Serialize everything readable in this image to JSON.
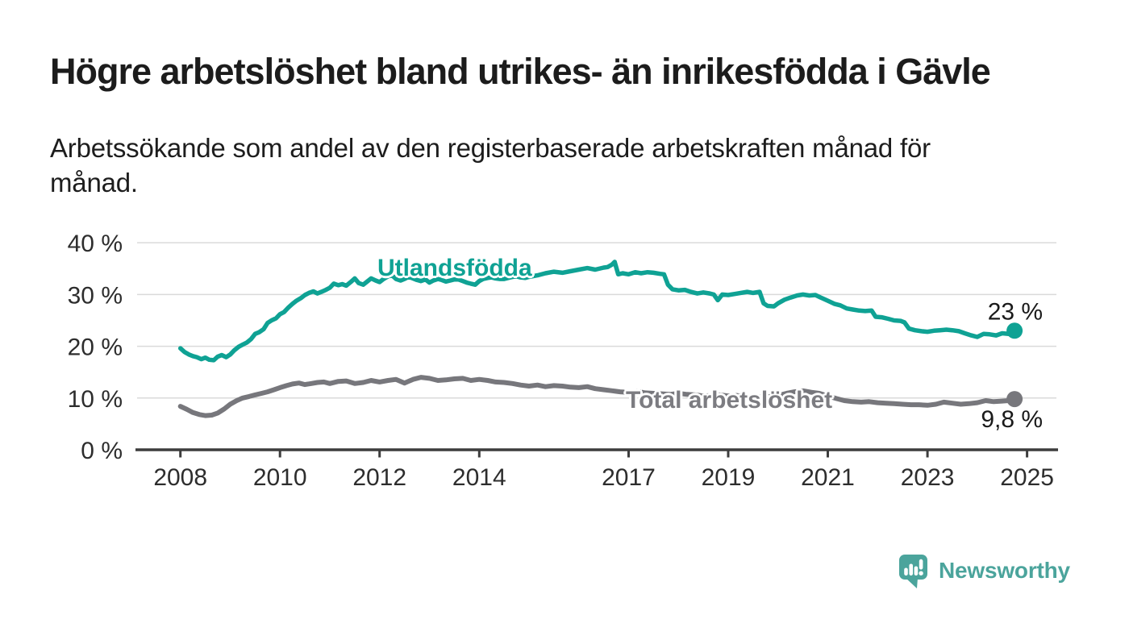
{
  "chart_data": {
    "type": "line",
    "title": "Högre arbetslöshet bland utrikes- än inrikesfödda i Gävle",
    "subtitle_lines": [
      "Arbetssökande som andel av den registerbaserade arbetskraften månad för",
      "månad."
    ],
    "y_unit": "%",
    "x_domain": [
      2007.13,
      2025.59
    ],
    "y_domain": [
      0,
      40.8
    ],
    "grid": true,
    "legend_position": "inline-labels",
    "y_ticks": [
      {
        "value": 0,
        "label": "0 %"
      },
      {
        "value": 10,
        "label": "10 %"
      },
      {
        "value": 20,
        "label": "20 %"
      },
      {
        "value": 30,
        "label": "30 %"
      },
      {
        "value": 40,
        "label": "40 %"
      }
    ],
    "x_ticks": [
      {
        "value": 2008,
        "label": "2008"
      },
      {
        "value": 2010,
        "label": "2010"
      },
      {
        "value": 2012,
        "label": "2012"
      },
      {
        "value": 2014,
        "label": "2014"
      },
      {
        "value": 2017,
        "label": "2017"
      },
      {
        "value": 2019,
        "label": "2019"
      },
      {
        "value": 2021,
        "label": "2021"
      },
      {
        "value": 2023,
        "label": "2023"
      },
      {
        "value": 2025,
        "label": "2025"
      }
    ],
    "series": [
      {
        "name": "Utlandsfödda",
        "color": "#0fa294",
        "end_label": "23 %",
        "last_value_pct": 23,
        "points": [
          [
            2008.0,
            19.6
          ],
          [
            2008.08,
            18.9
          ],
          [
            2008.17,
            18.4
          ],
          [
            2008.25,
            18.1
          ],
          [
            2008.33,
            17.9
          ],
          [
            2008.42,
            17.5
          ],
          [
            2008.5,
            17.8
          ],
          [
            2008.58,
            17.4
          ],
          [
            2008.67,
            17.3
          ],
          [
            2008.75,
            18.0
          ],
          [
            2008.83,
            18.3
          ],
          [
            2008.92,
            17.9
          ],
          [
            2009.0,
            18.4
          ],
          [
            2009.08,
            19.2
          ],
          [
            2009.17,
            19.9
          ],
          [
            2009.25,
            20.3
          ],
          [
            2009.33,
            20.7
          ],
          [
            2009.42,
            21.4
          ],
          [
            2009.5,
            22.4
          ],
          [
            2009.58,
            22.7
          ],
          [
            2009.67,
            23.3
          ],
          [
            2009.75,
            24.5
          ],
          [
            2009.83,
            25.0
          ],
          [
            2009.92,
            25.4
          ],
          [
            2010.0,
            26.2
          ],
          [
            2010.08,
            26.6
          ],
          [
            2010.17,
            27.5
          ],
          [
            2010.25,
            28.2
          ],
          [
            2010.33,
            28.8
          ],
          [
            2010.42,
            29.3
          ],
          [
            2010.5,
            29.9
          ],
          [
            2010.58,
            30.3
          ],
          [
            2010.67,
            30.6
          ],
          [
            2010.75,
            30.2
          ],
          [
            2010.83,
            30.5
          ],
          [
            2010.92,
            30.9
          ],
          [
            2011.0,
            31.3
          ],
          [
            2011.08,
            32.1
          ],
          [
            2011.17,
            31.8
          ],
          [
            2011.25,
            32.0
          ],
          [
            2011.33,
            31.7
          ],
          [
            2011.42,
            32.4
          ],
          [
            2011.5,
            33.1
          ],
          [
            2011.58,
            32.2
          ],
          [
            2011.67,
            31.9
          ],
          [
            2011.75,
            32.5
          ],
          [
            2011.83,
            33.1
          ],
          [
            2011.92,
            32.7
          ],
          [
            2012.0,
            32.4
          ],
          [
            2012.08,
            33.0
          ],
          [
            2012.17,
            33.5
          ],
          [
            2012.25,
            33.7
          ],
          [
            2012.33,
            33.0
          ],
          [
            2012.42,
            32.7
          ],
          [
            2012.5,
            33.0
          ],
          [
            2012.58,
            33.4
          ],
          [
            2012.67,
            33.1
          ],
          [
            2012.75,
            32.8
          ],
          [
            2012.83,
            32.6
          ],
          [
            2012.92,
            32.9
          ],
          [
            2013.0,
            32.3
          ],
          [
            2013.08,
            32.7
          ],
          [
            2013.17,
            33.0
          ],
          [
            2013.25,
            32.8
          ],
          [
            2013.33,
            32.5
          ],
          [
            2013.42,
            32.7
          ],
          [
            2013.5,
            32.9
          ],
          [
            2013.58,
            32.9
          ],
          [
            2013.67,
            32.6
          ],
          [
            2013.75,
            32.3
          ],
          [
            2013.83,
            32.1
          ],
          [
            2013.92,
            31.9
          ],
          [
            2014.0,
            32.6
          ],
          [
            2014.08,
            33.0
          ],
          [
            2014.17,
            33.2
          ],
          [
            2014.25,
            33.3
          ],
          [
            2014.33,
            33.1
          ],
          [
            2014.42,
            33.0
          ],
          [
            2014.5,
            33.0
          ],
          [
            2014.58,
            33.2
          ],
          [
            2014.67,
            33.4
          ],
          [
            2014.75,
            33.5
          ],
          [
            2014.83,
            33.3
          ],
          [
            2014.92,
            33.2
          ],
          [
            2015.0,
            33.4
          ],
          [
            2015.17,
            33.7
          ],
          [
            2015.33,
            34.1
          ],
          [
            2015.5,
            34.4
          ],
          [
            2015.67,
            34.2
          ],
          [
            2015.83,
            34.5
          ],
          [
            2016.0,
            34.8
          ],
          [
            2016.17,
            35.1
          ],
          [
            2016.33,
            34.8
          ],
          [
            2016.5,
            35.2
          ],
          [
            2016.58,
            35.3
          ],
          [
            2016.67,
            35.8
          ],
          [
            2016.72,
            36.3
          ],
          [
            2016.79,
            33.9
          ],
          [
            2016.88,
            34.1
          ],
          [
            2017.0,
            33.9
          ],
          [
            2017.13,
            34.3
          ],
          [
            2017.25,
            34.1
          ],
          [
            2017.38,
            34.3
          ],
          [
            2017.5,
            34.2
          ],
          [
            2017.63,
            34.0
          ],
          [
            2017.71,
            33.9
          ],
          [
            2017.79,
            31.9
          ],
          [
            2017.88,
            31.0
          ],
          [
            2018.0,
            30.8
          ],
          [
            2018.13,
            30.9
          ],
          [
            2018.25,
            30.5
          ],
          [
            2018.38,
            30.2
          ],
          [
            2018.5,
            30.4
          ],
          [
            2018.63,
            30.2
          ],
          [
            2018.71,
            30.0
          ],
          [
            2018.79,
            28.9
          ],
          [
            2018.88,
            30.0
          ],
          [
            2019.0,
            29.9
          ],
          [
            2019.13,
            30.1
          ],
          [
            2019.25,
            30.3
          ],
          [
            2019.38,
            30.5
          ],
          [
            2019.5,
            30.3
          ],
          [
            2019.63,
            30.5
          ],
          [
            2019.71,
            28.3
          ],
          [
            2019.79,
            27.8
          ],
          [
            2019.92,
            27.7
          ],
          [
            2020.0,
            28.3
          ],
          [
            2020.13,
            29.0
          ],
          [
            2020.25,
            29.4
          ],
          [
            2020.38,
            29.8
          ],
          [
            2020.5,
            30.0
          ],
          [
            2020.63,
            29.8
          ],
          [
            2020.75,
            29.9
          ],
          [
            2020.88,
            29.3
          ],
          [
            2021.0,
            28.8
          ],
          [
            2021.13,
            28.2
          ],
          [
            2021.25,
            27.9
          ],
          [
            2021.38,
            27.3
          ],
          [
            2021.5,
            27.1
          ],
          [
            2021.63,
            26.9
          ],
          [
            2021.75,
            26.8
          ],
          [
            2021.88,
            26.9
          ],
          [
            2021.96,
            25.7
          ],
          [
            2022.08,
            25.6
          ],
          [
            2022.21,
            25.3
          ],
          [
            2022.33,
            25.0
          ],
          [
            2022.46,
            24.9
          ],
          [
            2022.54,
            24.6
          ],
          [
            2022.63,
            23.4
          ],
          [
            2022.75,
            23.1
          ],
          [
            2022.88,
            22.9
          ],
          [
            2023.0,
            22.8
          ],
          [
            2023.13,
            23.0
          ],
          [
            2023.25,
            23.1
          ],
          [
            2023.38,
            23.2
          ],
          [
            2023.5,
            23.1
          ],
          [
            2023.63,
            22.9
          ],
          [
            2023.75,
            22.5
          ],
          [
            2023.88,
            22.1
          ],
          [
            2024.0,
            21.8
          ],
          [
            2024.13,
            22.4
          ],
          [
            2024.25,
            22.3
          ],
          [
            2024.38,
            22.1
          ],
          [
            2024.5,
            22.5
          ],
          [
            2024.63,
            22.4
          ],
          [
            2024.75,
            23.0
          ]
        ]
      },
      {
        "name": "Total arbetslöshet",
        "color": "#77777c",
        "end_label": "9,8 %",
        "last_value_pct": 9.8,
        "points": [
          [
            2008.0,
            8.4
          ],
          [
            2008.13,
            7.8
          ],
          [
            2008.25,
            7.2
          ],
          [
            2008.38,
            6.8
          ],
          [
            2008.5,
            6.6
          ],
          [
            2008.63,
            6.7
          ],
          [
            2008.75,
            7.1
          ],
          [
            2008.88,
            7.9
          ],
          [
            2009.0,
            8.8
          ],
          [
            2009.13,
            9.5
          ],
          [
            2009.25,
            10.0
          ],
          [
            2009.38,
            10.3
          ],
          [
            2009.5,
            10.6
          ],
          [
            2009.63,
            10.9
          ],
          [
            2009.75,
            11.2
          ],
          [
            2009.88,
            11.6
          ],
          [
            2010.0,
            12.0
          ],
          [
            2010.13,
            12.4
          ],
          [
            2010.25,
            12.7
          ],
          [
            2010.38,
            12.9
          ],
          [
            2010.5,
            12.6
          ],
          [
            2010.63,
            12.8
          ],
          [
            2010.75,
            13.0
          ],
          [
            2010.88,
            13.1
          ],
          [
            2011.0,
            12.8
          ],
          [
            2011.17,
            13.2
          ],
          [
            2011.33,
            13.3
          ],
          [
            2011.5,
            12.8
          ],
          [
            2011.67,
            13.0
          ],
          [
            2011.83,
            13.4
          ],
          [
            2012.0,
            13.1
          ],
          [
            2012.17,
            13.4
          ],
          [
            2012.33,
            13.6
          ],
          [
            2012.5,
            12.9
          ],
          [
            2012.67,
            13.6
          ],
          [
            2012.83,
            14.0
          ],
          [
            2013.0,
            13.8
          ],
          [
            2013.17,
            13.4
          ],
          [
            2013.33,
            13.5
          ],
          [
            2013.5,
            13.7
          ],
          [
            2013.67,
            13.8
          ],
          [
            2013.83,
            13.4
          ],
          [
            2014.0,
            13.6
          ],
          [
            2014.17,
            13.4
          ],
          [
            2014.33,
            13.1
          ],
          [
            2014.5,
            13.0
          ],
          [
            2014.67,
            12.8
          ],
          [
            2014.83,
            12.5
          ],
          [
            2015.0,
            12.3
          ],
          [
            2015.17,
            12.5
          ],
          [
            2015.33,
            12.2
          ],
          [
            2015.5,
            12.4
          ],
          [
            2015.67,
            12.3
          ],
          [
            2015.83,
            12.1
          ],
          [
            2016.0,
            12.0
          ],
          [
            2016.17,
            12.2
          ],
          [
            2016.33,
            11.8
          ],
          [
            2016.5,
            11.6
          ],
          [
            2016.67,
            11.4
          ],
          [
            2016.83,
            11.2
          ],
          [
            2017.0,
            11.1
          ],
          [
            2017.17,
            11.3
          ],
          [
            2017.33,
            11.0
          ],
          [
            2017.5,
            10.9
          ],
          [
            2017.67,
            10.8
          ],
          [
            2017.83,
            10.7
          ],
          [
            2018.0,
            10.9
          ],
          [
            2018.17,
            10.7
          ],
          [
            2018.33,
            10.6
          ],
          [
            2018.5,
            10.4
          ],
          [
            2018.67,
            10.5
          ],
          [
            2018.83,
            10.6
          ],
          [
            2019.0,
            10.4
          ],
          [
            2019.17,
            10.5
          ],
          [
            2019.33,
            10.3
          ],
          [
            2019.5,
            10.1
          ],
          [
            2019.67,
            10.2
          ],
          [
            2019.83,
            10.3
          ],
          [
            2020.0,
            10.5
          ],
          [
            2020.17,
            10.9
          ],
          [
            2020.33,
            11.2
          ],
          [
            2020.5,
            11.4
          ],
          [
            2020.67,
            11.1
          ],
          [
            2020.83,
            10.9
          ],
          [
            2021.0,
            10.4
          ],
          [
            2021.17,
            9.9
          ],
          [
            2021.33,
            9.5
          ],
          [
            2021.5,
            9.3
          ],
          [
            2021.67,
            9.2
          ],
          [
            2021.83,
            9.3
          ],
          [
            2022.0,
            9.1
          ],
          [
            2022.17,
            9.0
          ],
          [
            2022.33,
            8.9
          ],
          [
            2022.5,
            8.8
          ],
          [
            2022.67,
            8.7
          ],
          [
            2022.83,
            8.7
          ],
          [
            2023.0,
            8.6
          ],
          [
            2023.17,
            8.8
          ],
          [
            2023.33,
            9.2
          ],
          [
            2023.5,
            9.0
          ],
          [
            2023.67,
            8.8
          ],
          [
            2023.83,
            8.9
          ],
          [
            2024.0,
            9.1
          ],
          [
            2024.17,
            9.5
          ],
          [
            2024.33,
            9.3
          ],
          [
            2024.5,
            9.4
          ],
          [
            2024.63,
            9.5
          ],
          [
            2024.75,
            9.8
          ]
        ]
      }
    ]
  },
  "logo": {
    "text": "Newsworthy",
    "color": "#4ba49c",
    "icon": "speech-bubble-bar-chart-exclamation"
  },
  "colors": {
    "background": "#ffffff",
    "title_text": "#1c1c1c",
    "tick_text": "#2d2d2d",
    "value_text": "#1a1a1a",
    "grid": "#dadada",
    "axis": "#3d3d3d",
    "foreign_series": "#0fa294",
    "total_series": "#77777c",
    "total_label": "#7c7c81",
    "logo": "#4ba49c"
  }
}
